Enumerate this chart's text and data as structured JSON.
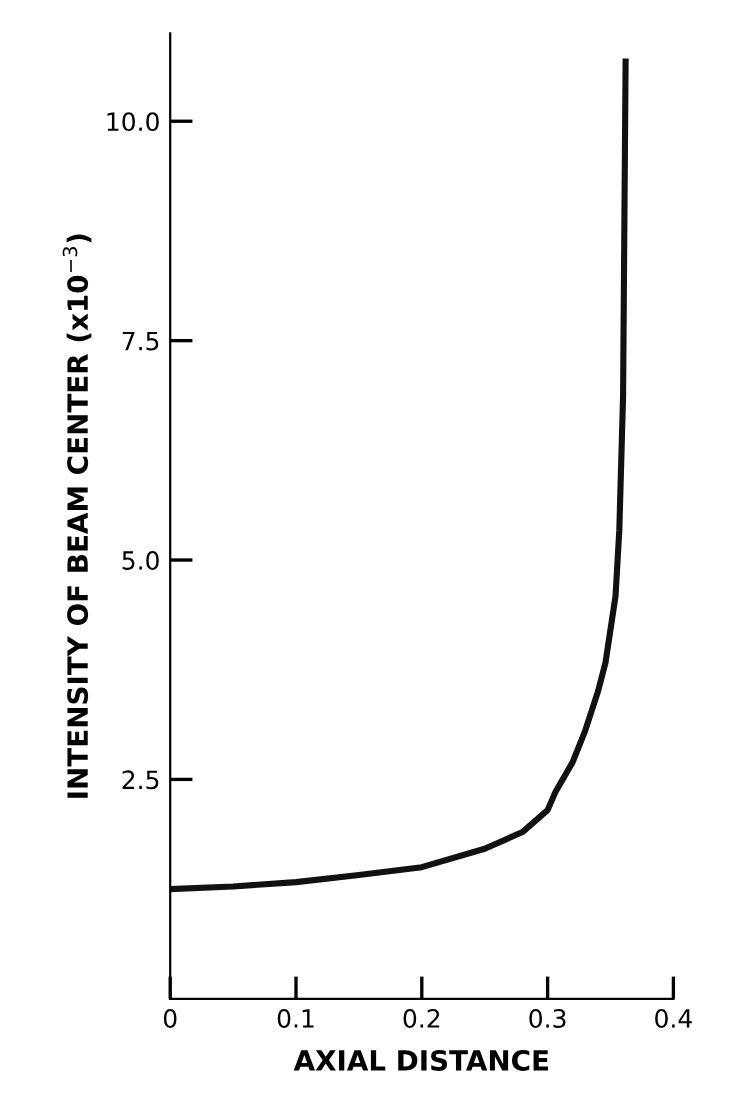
{
  "chart_data": {
    "type": "line",
    "xlabel": "AXIAL DISTANCE",
    "ylabel": "INTENSITY OF BEAM CENTER (x10$^{−3}$)",
    "x": [
      0,
      0.05,
      0.1,
      0.15,
      0.2,
      0.25,
      0.28,
      0.3,
      0.306,
      0.32,
      0.33,
      0.34,
      0.346,
      0.354,
      0.357,
      0.36,
      0.362
    ],
    "series": [
      {
        "color": "#111111",
        "values": [
          1.25,
          1.28,
          1.33,
          1.41,
          1.5,
          1.71,
          1.9,
          2.15,
          2.35,
          2.7,
          3.06,
          3.5,
          3.83,
          4.59,
          5.34,
          6.87,
          10.68
        ]
      }
    ],
    "xlim": [
      0,
      0.4
    ],
    "ylim": [
      0,
      11
    ],
    "xticks": [
      {
        "value": 0,
        "label": "0"
      },
      0.1,
      0.2,
      0.3,
      0.4
    ],
    "yticks": [
      2.5,
      {
        "value": 5,
        "label": "5.0"
      },
      7.5,
      {
        "value": 10,
        "label": "10.0"
      }
    ],
    "grid": false,
    "legend": false,
    "line_style": "solid",
    "marker": "none"
  }
}
